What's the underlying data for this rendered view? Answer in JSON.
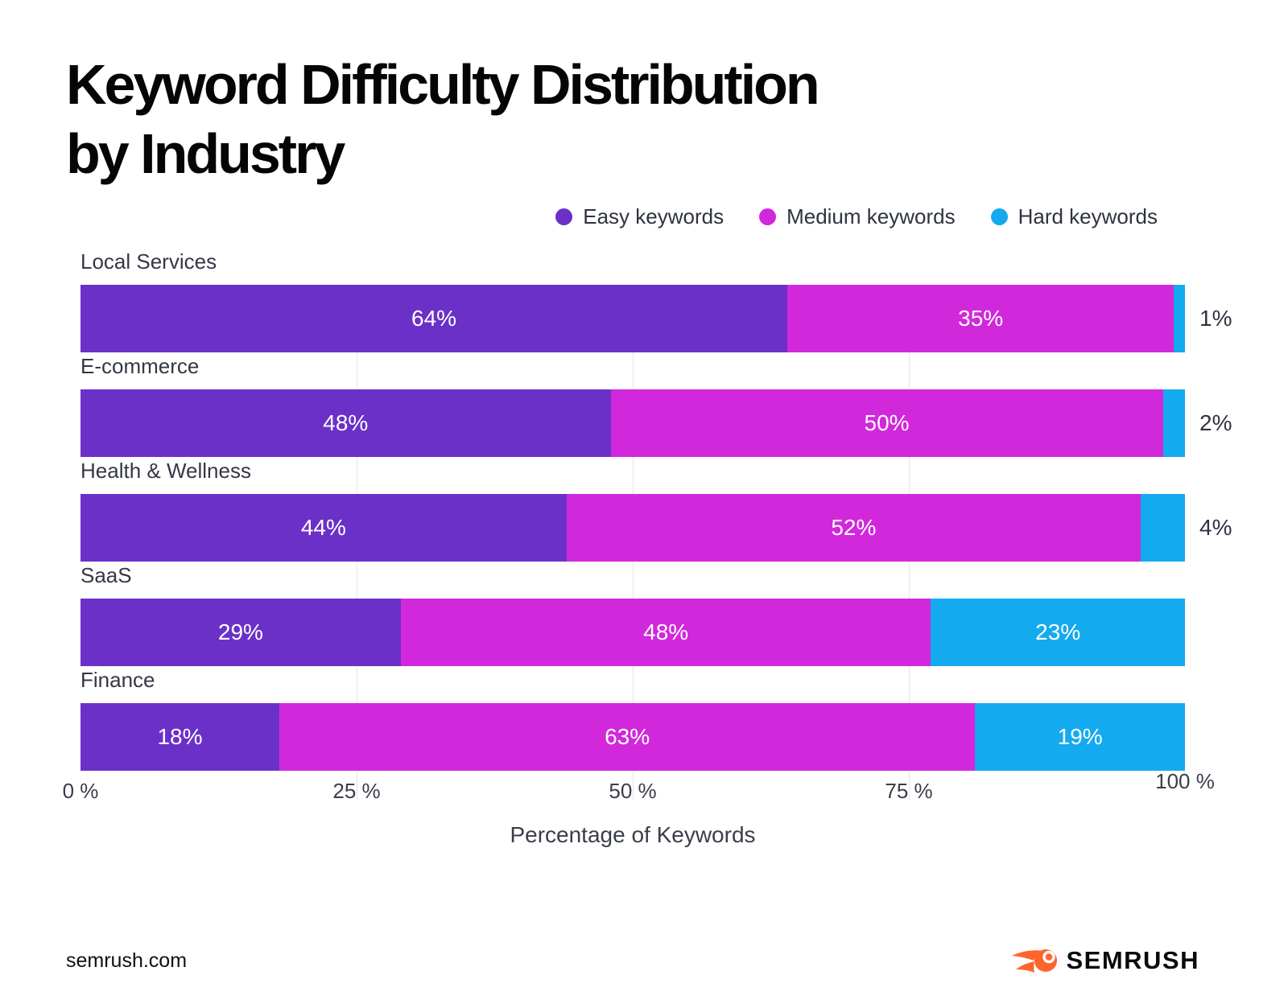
{
  "title": {
    "line1": "Keyword Difficulty Distribution",
    "line2": "by Industry"
  },
  "chart_data": {
    "type": "bar",
    "orientation": "horizontal_stacked",
    "title": "Keyword Difficulty Distribution by Industry",
    "categories": [
      "Local Services",
      "E-commerce",
      "Health & Wellness",
      "SaaS",
      "Finance"
    ],
    "series": [
      {
        "name": "Easy keywords",
        "color": "#6B30C8",
        "values": [
          64,
          48,
          44,
          29,
          18
        ]
      },
      {
        "name": "Medium keywords",
        "color": "#D128DC",
        "values": [
          35,
          50,
          52,
          48,
          63
        ]
      },
      {
        "name": "Hard keywords",
        "color": "#14AAF0",
        "values": [
          1,
          2,
          4,
          23,
          19
        ]
      }
    ],
    "value_labels": [
      [
        "64%",
        "35%",
        "1%"
      ],
      [
        "48%",
        "50%",
        "2%"
      ],
      [
        "44%",
        "52%",
        "4%"
      ],
      [
        "29%",
        "48%",
        "23%"
      ],
      [
        "18%",
        "63%",
        "19%"
      ]
    ],
    "xlabel": "Percentage of Keywords",
    "xlim": [
      0,
      100
    ],
    "x_ticks": [
      {
        "label": "0 %",
        "value": 0
      },
      {
        "label": "25 %",
        "value": 25
      },
      {
        "label": "50 %",
        "value": 50
      },
      {
        "label": "75 %",
        "value": 75
      },
      {
        "label": "100 %",
        "value": 100
      }
    ],
    "gridlines": [
      25,
      50,
      75
    ],
    "grid": true,
    "legend_position": "top-right",
    "value_suffix": "%"
  },
  "colors": {
    "easy": "#6B30C8",
    "medium": "#D128DC",
    "hard": "#14AAF0",
    "gridline": "#E5E5E8",
    "text_dark": "#2F3340",
    "logo_orange": "#FF642D"
  },
  "footer": {
    "site": "semrush.com",
    "brand": "SEMRUSH"
  },
  "icons": {
    "legend_dot": "filled-circle",
    "brand_icon": "semrush-comet"
  }
}
